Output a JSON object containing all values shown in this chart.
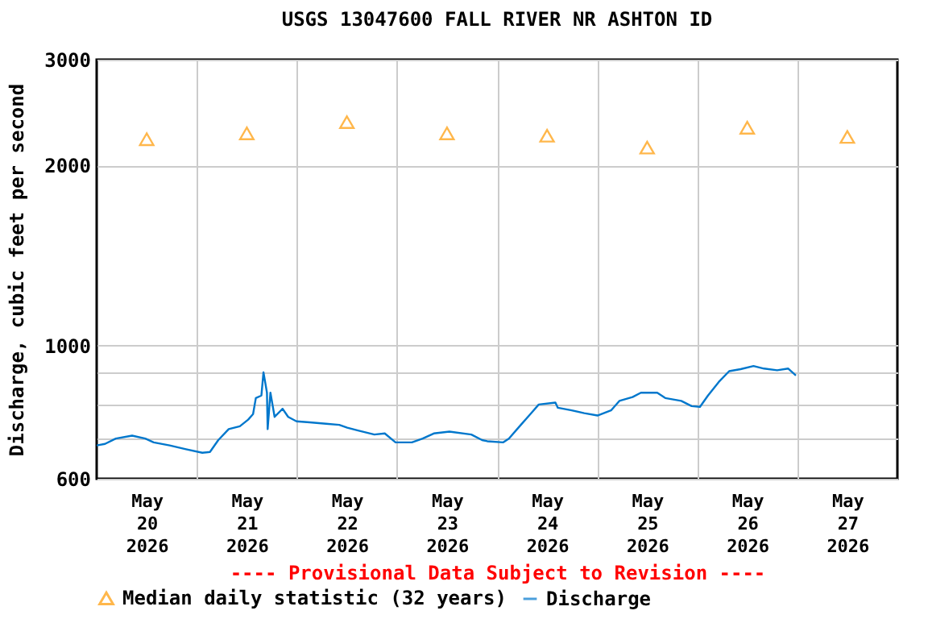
{
  "chart_data": {
    "type": "line",
    "title": "USGS 13047600 FALL RIVER NR ASHTON ID",
    "ylabel": "Discharge, cubic feet per second",
    "annotations": [
      "---- Provisional Data Subject to Revision ----"
    ],
    "log": "y",
    "grid": true,
    "legend": "bottom",
    "xlim": [
      "2026-05-20T00:00",
      "2026-05-28T00:00"
    ],
    "xticks": [
      {
        "value": "2026-05-20T12:00",
        "label": "May 20 2026"
      },
      {
        "value": "2026-05-21T00:00",
        "label": null
      },
      {
        "value": "2026-05-21T12:00",
        "label": "May 21 2026"
      },
      {
        "value": "2026-05-22T00:00",
        "label": null
      },
      {
        "value": "2026-05-22T12:00",
        "label": "May 22 2026"
      },
      {
        "value": "2026-05-23T00:00",
        "label": null
      },
      {
        "value": "2026-05-23T12:00",
        "label": "May 23 2026"
      },
      {
        "value": "2026-05-24T00:00",
        "label": null
      },
      {
        "value": "2026-05-24T12:00",
        "label": "May 24 2026"
      },
      {
        "value": "2026-05-25T00:00",
        "label": null
      },
      {
        "value": "2026-05-25T12:00",
        "label": "May 25 2026"
      },
      {
        "value": "2026-05-26T00:00",
        "label": null
      },
      {
        "value": "2026-05-26T12:00",
        "label": "May 26 2026"
      },
      {
        "value": "2026-05-27T00:00",
        "label": null
      },
      {
        "value": "2026-05-27T12:00",
        "label": "May 27 2026"
      }
    ],
    "ylim": [
      600,
      3000
    ],
    "yticks": [
      600,
      {
        "value": 700,
        "label": null
      },
      {
        "value": 800,
        "label": null
      },
      {
        "value": 900,
        "label": null
      },
      1000,
      2000,
      3000
    ],
    "series": [
      {
        "name": "Median daily statistic (32 years)",
        "type": "scatter",
        "marker": "triangle",
        "color": "#ff9900",
        "x": [
          "2026-05-20T12:00",
          "2026-05-21T12:00",
          "2026-05-22T12:00",
          "2026-05-23T12:00",
          "2026-05-24T12:00",
          "2026-05-25T12:00",
          "2026-05-26T12:00",
          "2026-05-27T12:00"
        ],
        "values": [
          2210,
          2260,
          2360,
          2260,
          2240,
          2140,
          2310,
          2230
        ]
      },
      {
        "name": "Discharge",
        "type": "line",
        "color": "#0077cc",
        "x": [
          "2026-05-20T00:00",
          "2026-05-20T02:00",
          "2026-05-20T04:35",
          "2026-05-20T08:30",
          "2026-05-20T11:40",
          "2026-05-20T13:40",
          "2026-05-20T17:30",
          "2026-05-20T21:25",
          "2026-05-21T01:20",
          "2026-05-21T03:10",
          "2026-05-21T05:10",
          "2026-05-21T07:40",
          "2026-05-21T10:20",
          "2026-05-21T12:20",
          "2026-05-21T13:30",
          "2026-05-21T14:10",
          "2026-05-21T15:30",
          "2026-05-21T16:00",
          "2026-05-21T16:50",
          "2026-05-21T17:00",
          "2026-05-21T17:40",
          "2026-05-21T18:40",
          "2026-05-21T20:35",
          "2026-05-21T21:55",
          "2026-05-21T23:55",
          "2026-05-22T03:05",
          "2026-05-22T07:00",
          "2026-05-22T10:10",
          "2026-05-22T12:05",
          "2026-05-22T14:40",
          "2026-05-22T18:35",
          "2026-05-22T21:05",
          "2026-05-22T23:40",
          "2026-05-23T03:35",
          "2026-05-23T06:10",
          "2026-05-23T08:50",
          "2026-05-23T12:35",
          "2026-05-23T17:50",
          "2026-05-23T20:25",
          "2026-05-23T21:40",
          "2026-05-24T01:30",
          "2026-05-24T02:50",
          "2026-05-24T05:25",
          "2026-05-24T08:00",
          "2026-05-24T10:00",
          "2026-05-24T14:00",
          "2026-05-24T14:35",
          "2026-05-24T17:40",
          "2026-05-24T20:55",
          "2026-05-25T00:05",
          "2026-05-25T03:20",
          "2026-05-25T05:20",
          "2026-05-25T08:30",
          "2026-05-25T10:30",
          "2026-05-25T14:25",
          "2026-05-25T16:20",
          "2026-05-25T20:10",
          "2026-05-25T22:40",
          "2026-05-26T00:40",
          "2026-05-26T02:35",
          "2026-05-26T05:10",
          "2026-05-26T07:40",
          "2026-05-26T10:25",
          "2026-05-26T13:30",
          "2026-05-26T16:00",
          "2026-05-26T19:10",
          "2026-05-26T21:50",
          "2026-05-26T23:40"
        ],
        "values": [
          682,
          686,
          700,
          708,
          700,
          690,
          682,
          672,
          663,
          665,
          696,
          726,
          734,
          753,
          769,
          818,
          826,
          903,
          835,
          726,
          835,
          761,
          785,
          761,
          748,
          745,
          741,
          738,
          730,
          722,
          711,
          714,
          690,
          690,
          700,
          714,
          719,
          711,
          696,
          693,
          690,
          700,
          734,
          769,
          798,
          804,
          788,
          781,
          772,
          765,
          780,
          809,
          821,
          835,
          835,
          818,
          809,
          793,
          791,
          826,
          870,
          907,
          914,
          925,
          916,
          910,
          916,
          892
        ]
      }
    ]
  }
}
